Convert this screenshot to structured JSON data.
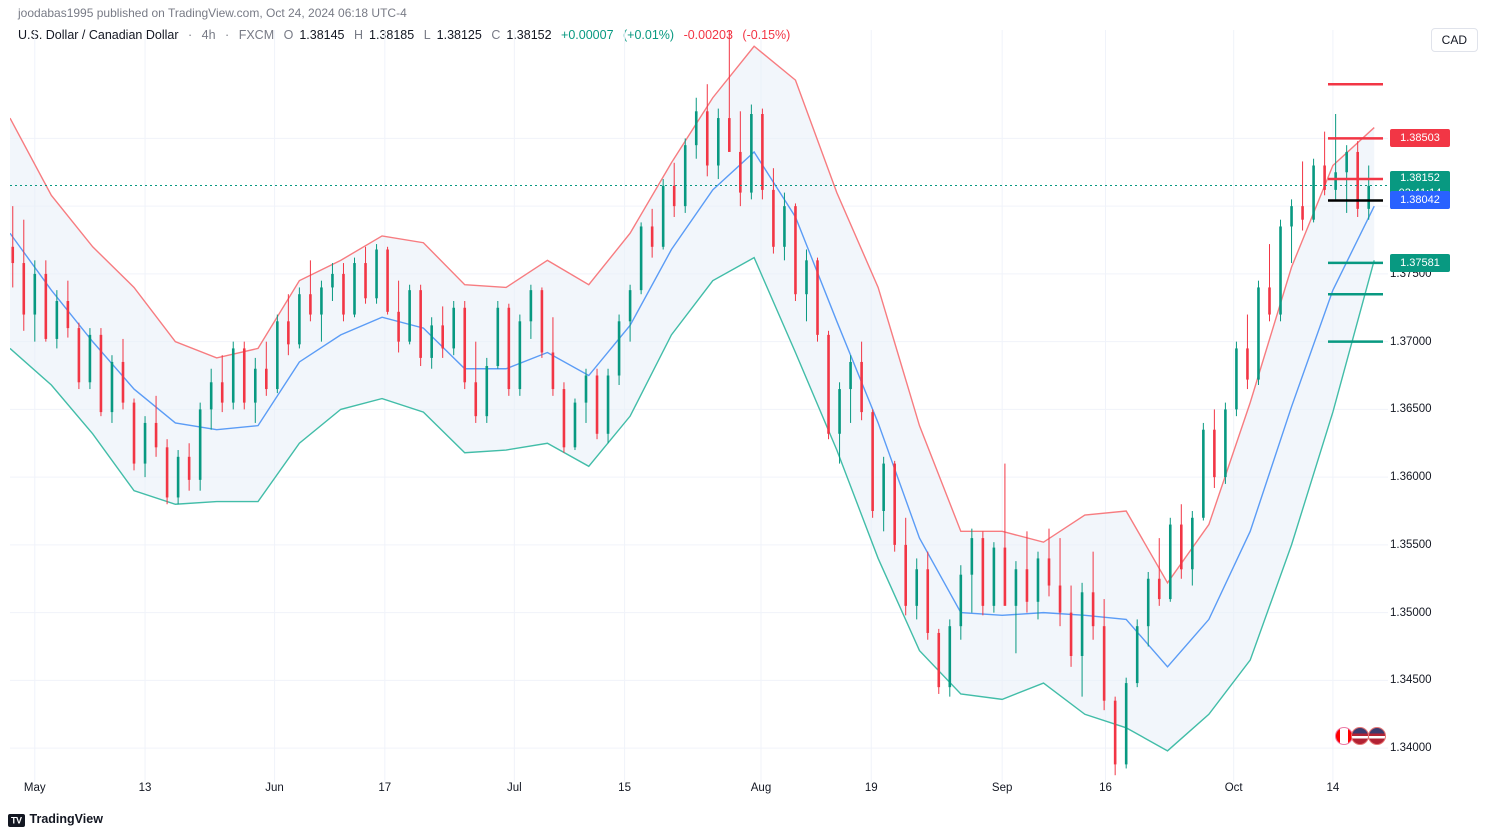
{
  "header": {
    "publisher": "joodabas1995",
    "verb": "published on",
    "site": "TradingView.com",
    "timestamp": "Oct 24, 2024 06:18 UTC-4"
  },
  "symbol": {
    "name": "U.S. Dollar / Canadian Dollar",
    "interval": "4h",
    "source": "FXCM",
    "ohlc": {
      "O": "1.38145",
      "H": "1.38185",
      "L": "1.38125",
      "C": "1.38152"
    },
    "change_abs": "+0.00007",
    "change_pct": "(+0.01%)",
    "change2_abs": "-0.00203",
    "change2_pct": "(-0.15%)"
  },
  "currency_badge": "CAD",
  "footer_brand": "TradingView",
  "axes": {
    "ymin": 1.3375,
    "ymax": 1.393,
    "yticks": [
      {
        "v": 1.385,
        "l": "1.38500"
      },
      {
        "v": 1.38,
        "l": "1.38000"
      },
      {
        "v": 1.375,
        "l": "1.37500"
      },
      {
        "v": 1.37,
        "l": "1.37000"
      },
      {
        "v": 1.365,
        "l": "1.36500"
      },
      {
        "v": 1.36,
        "l": "1.36000"
      },
      {
        "v": 1.355,
        "l": "1.35500"
      },
      {
        "v": 1.35,
        "l": "1.35000"
      },
      {
        "v": 1.345,
        "l": "1.34500"
      },
      {
        "v": 1.34,
        "l": "1.34000"
      }
    ],
    "xticks": [
      {
        "t": 0.018,
        "l": "May"
      },
      {
        "t": 0.098,
        "l": "13"
      },
      {
        "t": 0.192,
        "l": "Jun"
      },
      {
        "t": 0.272,
        "l": "17"
      },
      {
        "t": 0.366,
        "l": "Jul"
      },
      {
        "t": 0.446,
        "l": "15"
      },
      {
        "t": 0.545,
        "l": "Aug"
      },
      {
        "t": 0.625,
        "l": "19"
      },
      {
        "t": 0.72,
        "l": "Sep"
      },
      {
        "t": 0.795,
        "l": "16"
      },
      {
        "t": 0.888,
        "l": "Oct"
      },
      {
        "t": 0.96,
        "l": "14"
      }
    ]
  },
  "price_labels": [
    {
      "v": 1.38503,
      "text": "1.38503",
      "bg": "#f23645"
    },
    {
      "v": 1.38152,
      "text": "1.38152",
      "text2": "02:41:14",
      "bg": "#089981"
    },
    {
      "v": 1.38042,
      "text": "1.38042",
      "bg": "#2962ff"
    },
    {
      "v": 1.37581,
      "text": "1.37581",
      "bg": "#089981"
    }
  ],
  "current_price_line": {
    "v": 1.38152,
    "color": "#089981",
    "dash": "2,3"
  },
  "markers": {
    "red_short": [
      {
        "v": 1.389
      },
      {
        "v": 1.385
      },
      {
        "v": 1.382
      }
    ],
    "black_short": [
      {
        "v": 1.38042
      }
    ],
    "green_short": [
      {
        "v": 1.37581
      },
      {
        "v": 1.3735
      },
      {
        "v": 1.37
      }
    ]
  },
  "style": {
    "upper_band_color": "#f77c80",
    "lower_band_color": "#42bda8",
    "mid_band_color": "#5b9cf6",
    "band_fill": "#e8eef8",
    "band_fill_opacity": 0.55,
    "candle_up": "#089981",
    "candle_down": "#f23645",
    "grid_color": "#f0f3fa",
    "wick_width": 1,
    "body_width": 2.6
  },
  "series_comment": "t = 0..1 across x; values are price",
  "upper_band": [
    [
      0.0,
      1.3865
    ],
    [
      0.03,
      1.3808
    ],
    [
      0.06,
      1.377
    ],
    [
      0.09,
      1.374
    ],
    [
      0.12,
      1.37
    ],
    [
      0.15,
      1.3688
    ],
    [
      0.18,
      1.3695
    ],
    [
      0.21,
      1.3745
    ],
    [
      0.24,
      1.376
    ],
    [
      0.27,
      1.3778
    ],
    [
      0.3,
      1.3773
    ],
    [
      0.33,
      1.3742
    ],
    [
      0.36,
      1.374
    ],
    [
      0.39,
      1.376
    ],
    [
      0.42,
      1.3742
    ],
    [
      0.45,
      1.378
    ],
    [
      0.48,
      1.3832
    ],
    [
      0.51,
      1.388
    ],
    [
      0.54,
      1.3918
    ],
    [
      0.57,
      1.3893
    ],
    [
      0.6,
      1.381
    ],
    [
      0.63,
      1.374
    ],
    [
      0.66,
      1.3638
    ],
    [
      0.69,
      1.356
    ],
    [
      0.72,
      1.356
    ],
    [
      0.75,
      1.3552
    ],
    [
      0.78,
      1.3572
    ],
    [
      0.81,
      1.3575
    ],
    [
      0.84,
      1.3522
    ],
    [
      0.87,
      1.3565
    ],
    [
      0.9,
      1.3655
    ],
    [
      0.93,
      1.3755
    ],
    [
      0.96,
      1.383
    ],
    [
      0.99,
      1.3858
    ]
  ],
  "mid_band": [
    [
      0.0,
      1.378
    ],
    [
      0.03,
      1.3738
    ],
    [
      0.06,
      1.37
    ],
    [
      0.09,
      1.3665
    ],
    [
      0.12,
      1.364
    ],
    [
      0.15,
      1.3635
    ],
    [
      0.18,
      1.3638
    ],
    [
      0.21,
      1.3685
    ],
    [
      0.24,
      1.3705
    ],
    [
      0.27,
      1.3718
    ],
    [
      0.3,
      1.371
    ],
    [
      0.33,
      1.368
    ],
    [
      0.36,
      1.368
    ],
    [
      0.39,
      1.3692
    ],
    [
      0.42,
      1.3675
    ],
    [
      0.45,
      1.3712
    ],
    [
      0.48,
      1.3768
    ],
    [
      0.51,
      1.3812
    ],
    [
      0.54,
      1.384
    ],
    [
      0.57,
      1.3792
    ],
    [
      0.6,
      1.3715
    ],
    [
      0.63,
      1.364
    ],
    [
      0.66,
      1.3555
    ],
    [
      0.69,
      1.35
    ],
    [
      0.72,
      1.3498
    ],
    [
      0.75,
      1.35
    ],
    [
      0.78,
      1.3498
    ],
    [
      0.81,
      1.3495
    ],
    [
      0.84,
      1.346
    ],
    [
      0.87,
      1.3495
    ],
    [
      0.9,
      1.356
    ],
    [
      0.93,
      1.3652
    ],
    [
      0.96,
      1.3738
    ],
    [
      0.99,
      1.38
    ]
  ],
  "lower_band": [
    [
      0.0,
      1.3695
    ],
    [
      0.03,
      1.3668
    ],
    [
      0.06,
      1.3632
    ],
    [
      0.09,
      1.359
    ],
    [
      0.12,
      1.358
    ],
    [
      0.15,
      1.3582
    ],
    [
      0.18,
      1.3582
    ],
    [
      0.21,
      1.3625
    ],
    [
      0.24,
      1.365
    ],
    [
      0.27,
      1.3658
    ],
    [
      0.3,
      1.3648
    ],
    [
      0.33,
      1.3618
    ],
    [
      0.36,
      1.362
    ],
    [
      0.39,
      1.3625
    ],
    [
      0.42,
      1.3608
    ],
    [
      0.45,
      1.3645
    ],
    [
      0.48,
      1.3705
    ],
    [
      0.51,
      1.3745
    ],
    [
      0.54,
      1.3762
    ],
    [
      0.57,
      1.3692
    ],
    [
      0.6,
      1.362
    ],
    [
      0.63,
      1.354
    ],
    [
      0.66,
      1.3472
    ],
    [
      0.69,
      1.344
    ],
    [
      0.72,
      1.3436
    ],
    [
      0.75,
      1.3448
    ],
    [
      0.78,
      1.3425
    ],
    [
      0.81,
      1.3415
    ],
    [
      0.84,
      1.3398
    ],
    [
      0.87,
      1.3425
    ],
    [
      0.9,
      1.3465
    ],
    [
      0.93,
      1.355
    ],
    [
      0.96,
      1.3648
    ],
    [
      0.99,
      1.376
    ]
  ],
  "candles": [
    [
      0.002,
      1.377,
      1.38,
      1.374,
      1.3758
    ],
    [
      0.01,
      1.3758,
      1.379,
      1.3708,
      1.372
    ],
    [
      0.018,
      1.372,
      1.376,
      1.37,
      1.375
    ],
    [
      0.026,
      1.375,
      1.376,
      1.37,
      1.3702
    ],
    [
      0.034,
      1.3702,
      1.3738,
      1.3695,
      1.373
    ],
    [
      0.042,
      1.373,
      1.3745,
      1.3703,
      1.371
    ],
    [
      0.05,
      1.371,
      1.3714,
      1.3665,
      1.367
    ],
    [
      0.058,
      1.367,
      1.371,
      1.3665,
      1.3705
    ],
    [
      0.066,
      1.3705,
      1.371,
      1.3645,
      1.3648
    ],
    [
      0.074,
      1.3648,
      1.369,
      1.364,
      1.3685
    ],
    [
      0.082,
      1.3685,
      1.3702,
      1.365,
      1.3655
    ],
    [
      0.09,
      1.3655,
      1.3658,
      1.3605,
      1.361
    ],
    [
      0.098,
      1.361,
      1.3645,
      1.36,
      1.364
    ],
    [
      0.106,
      1.364,
      1.366,
      1.3615,
      1.3622
    ],
    [
      0.114,
      1.3622,
      1.3628,
      1.358,
      1.3585
    ],
    [
      0.122,
      1.3585,
      1.362,
      1.358,
      1.3615
    ],
    [
      0.13,
      1.3615,
      1.3625,
      1.359,
      1.3598
    ],
    [
      0.138,
      1.3598,
      1.3655,
      1.359,
      1.365
    ],
    [
      0.146,
      1.365,
      1.368,
      1.3635,
      1.367
    ],
    [
      0.154,
      1.367,
      1.369,
      1.3648,
      1.3655
    ],
    [
      0.162,
      1.3655,
      1.37,
      1.365,
      1.3695
    ],
    [
      0.17,
      1.3695,
      1.37,
      1.365,
      1.3655
    ],
    [
      0.178,
      1.3655,
      1.3688,
      1.364,
      1.368
    ],
    [
      0.186,
      1.368,
      1.37,
      1.366,
      1.3665
    ],
    [
      0.194,
      1.3665,
      1.372,
      1.3662,
      1.3715
    ],
    [
      0.202,
      1.3715,
      1.3735,
      1.369,
      1.3698
    ],
    [
      0.21,
      1.3698,
      1.374,
      1.3695,
      1.3735
    ],
    [
      0.218,
      1.3735,
      1.376,
      1.3715,
      1.372
    ],
    [
      0.226,
      1.372,
      1.3745,
      1.37,
      1.374
    ],
    [
      0.234,
      1.374,
      1.3758,
      1.373,
      1.375
    ],
    [
      0.242,
      1.375,
      1.3758,
      1.3715,
      1.372
    ],
    [
      0.25,
      1.372,
      1.3762,
      1.3718,
      1.3758
    ],
    [
      0.258,
      1.3758,
      1.377,
      1.3728,
      1.3732
    ],
    [
      0.266,
      1.3732,
      1.3772,
      1.3728,
      1.3768
    ],
    [
      0.274,
      1.3768,
      1.377,
      1.372,
      1.3722
    ],
    [
      0.282,
      1.3722,
      1.3745,
      1.3692,
      1.37
    ],
    [
      0.29,
      1.37,
      1.3742,
      1.3698,
      1.3738
    ],
    [
      0.298,
      1.3738,
      1.3742,
      1.3682,
      1.3688
    ],
    [
      0.306,
      1.3688,
      1.3718,
      1.368,
      1.3712
    ],
    [
      0.314,
      1.3712,
      1.3726,
      1.3688,
      1.3695
    ],
    [
      0.322,
      1.3695,
      1.373,
      1.369,
      1.3725
    ],
    [
      0.33,
      1.3725,
      1.373,
      1.3665,
      1.367
    ],
    [
      0.338,
      1.367,
      1.37,
      1.364,
      1.3645
    ],
    [
      0.346,
      1.3645,
      1.3688,
      1.364,
      1.3682
    ],
    [
      0.354,
      1.3682,
      1.373,
      1.368,
      1.3725
    ],
    [
      0.362,
      1.3725,
      1.3728,
      1.366,
      1.3665
    ],
    [
      0.37,
      1.3665,
      1.372,
      1.366,
      1.3715
    ],
    [
      0.378,
      1.3715,
      1.3742,
      1.3702,
      1.3738
    ],
    [
      0.386,
      1.3738,
      1.374,
      1.3688,
      1.3692
    ],
    [
      0.394,
      1.3692,
      1.3718,
      1.366,
      1.3665
    ],
    [
      0.402,
      1.3665,
      1.367,
      1.3618,
      1.3622
    ],
    [
      0.41,
      1.3622,
      1.3658,
      1.362,
      1.3655
    ],
    [
      0.418,
      1.3655,
      1.368,
      1.364,
      1.3675
    ],
    [
      0.426,
      1.3675,
      1.368,
      1.3628,
      1.3632
    ],
    [
      0.434,
      1.3632,
      1.368,
      1.3625,
      1.3675
    ],
    [
      0.442,
      1.3675,
      1.372,
      1.3668,
      1.3715
    ],
    [
      0.45,
      1.3715,
      1.3742,
      1.37,
      1.3738
    ],
    [
      0.458,
      1.3738,
      1.3788,
      1.3735,
      1.3785
    ],
    [
      0.466,
      1.3785,
      1.3798,
      1.3762,
      1.377
    ],
    [
      0.474,
      1.377,
      1.382,
      1.3768,
      1.3815
    ],
    [
      0.482,
      1.3815,
      1.3832,
      1.3792,
      1.38
    ],
    [
      0.49,
      1.38,
      1.385,
      1.3795,
      1.3845
    ],
    [
      0.498,
      1.3845,
      1.388,
      1.3835,
      1.387
    ],
    [
      0.506,
      1.387,
      1.389,
      1.3822,
      1.383
    ],
    [
      0.514,
      1.383,
      1.3872,
      1.382,
      1.3865
    ],
    [
      0.522,
      1.3865,
      1.393,
      1.3858,
      1.384
    ],
    [
      0.53,
      1.384,
      1.387,
      1.38,
      1.381
    ],
    [
      0.538,
      1.381,
      1.3875,
      1.3805,
      1.3868
    ],
    [
      0.546,
      1.3868,
      1.3872,
      1.3805,
      1.3812
    ],
    [
      0.554,
      1.3812,
      1.3828,
      1.3765,
      1.377
    ],
    [
      0.562,
      1.377,
      1.381,
      1.376,
      1.38
    ],
    [
      0.57,
      1.38,
      1.3802,
      1.373,
      1.3735
    ],
    [
      0.578,
      1.3735,
      1.3768,
      1.3715,
      1.376
    ],
    [
      0.586,
      1.376,
      1.3762,
      1.37,
      1.3705
    ],
    [
      0.594,
      1.3705,
      1.3708,
      1.3628,
      1.3632
    ],
    [
      0.602,
      1.3632,
      1.367,
      1.361,
      1.3665
    ],
    [
      0.61,
      1.3665,
      1.369,
      1.364,
      1.3685
    ],
    [
      0.618,
      1.3685,
      1.37,
      1.3642,
      1.3648
    ],
    [
      0.626,
      1.3648,
      1.365,
      1.357,
      1.3575
    ],
    [
      0.634,
      1.3575,
      1.3615,
      1.356,
      1.361
    ],
    [
      0.642,
      1.361,
      1.3612,
      1.3545,
      1.355
    ],
    [
      0.65,
      1.355,
      1.357,
      1.3498,
      1.3505
    ],
    [
      0.658,
      1.3505,
      1.354,
      1.3495,
      1.3532
    ],
    [
      0.666,
      1.3532,
      1.3545,
      1.348,
      1.3485
    ],
    [
      0.674,
      1.3485,
      1.3488,
      1.344,
      1.3445
    ],
    [
      0.682,
      1.3445,
      1.3495,
      1.3438,
      1.349
    ],
    [
      0.69,
      1.349,
      1.3535,
      1.348,
      1.3528
    ],
    [
      0.698,
      1.3528,
      1.3562,
      1.35,
      1.3555
    ],
    [
      0.706,
      1.3555,
      1.356,
      1.3498,
      1.3505
    ],
    [
      0.714,
      1.3505,
      1.3552,
      1.35,
      1.3548
    ],
    [
      0.722,
      1.3548,
      1.361,
      1.3545,
      1.3505
    ],
    [
      0.73,
      1.3505,
      1.3538,
      1.347,
      1.3532
    ],
    [
      0.738,
      1.3532,
      1.356,
      1.35,
      1.3508
    ],
    [
      0.746,
      1.3508,
      1.3545,
      1.3495,
      1.354
    ],
    [
      0.754,
      1.354,
      1.3562,
      1.3512,
      1.352
    ],
    [
      0.762,
      1.352,
      1.3555,
      1.349,
      1.35
    ],
    [
      0.77,
      1.35,
      1.352,
      1.346,
      1.3468
    ],
    [
      0.778,
      1.3468,
      1.3522,
      1.3438,
      1.3515
    ],
    [
      0.786,
      1.3515,
      1.3545,
      1.348,
      1.349
    ],
    [
      0.794,
      1.349,
      1.351,
      1.3428,
      1.3435
    ],
    [
      0.802,
      1.3435,
      1.3438,
      1.338,
      1.3388
    ],
    [
      0.81,
      1.3388,
      1.3452,
      1.3385,
      1.3448
    ],
    [
      0.818,
      1.3448,
      1.3495,
      1.3445,
      1.349
    ],
    [
      0.826,
      1.349,
      1.353,
      1.3475,
      1.3525
    ],
    [
      0.834,
      1.3525,
      1.3555,
      1.3505,
      1.351
    ],
    [
      0.842,
      1.351,
      1.357,
      1.3508,
      1.3565
    ],
    [
      0.85,
      1.3565,
      1.358,
      1.3525,
      1.3532
    ],
    [
      0.858,
      1.3532,
      1.3575,
      1.352,
      1.357
    ],
    [
      0.866,
      1.357,
      1.364,
      1.3568,
      1.3635
    ],
    [
      0.874,
      1.3635,
      1.365,
      1.3592,
      1.36
    ],
    [
      0.882,
      1.36,
      1.3655,
      1.3595,
      1.365
    ],
    [
      0.89,
      1.365,
      1.37,
      1.3645,
      1.3695
    ],
    [
      0.898,
      1.3695,
      1.372,
      1.3665,
      1.3672
    ],
    [
      0.906,
      1.3672,
      1.3745,
      1.3668,
      1.374
    ],
    [
      0.914,
      1.374,
      1.3772,
      1.3715,
      1.372
    ],
    [
      0.922,
      1.372,
      1.379,
      1.3715,
      1.3785
    ],
    [
      0.93,
      1.3785,
      1.3805,
      1.3758,
      1.38
    ],
    [
      0.938,
      1.38,
      1.3833,
      1.3782,
      1.379
    ],
    [
      0.946,
      1.379,
      1.3835,
      1.3788,
      1.383
    ],
    [
      0.954,
      1.383,
      1.3855,
      1.3808,
      1.3812
    ],
    [
      0.962,
      1.3812,
      1.3868,
      1.3805,
      1.3825
    ],
    [
      0.97,
      1.3825,
      1.3845,
      1.3795,
      1.384
    ],
    [
      0.978,
      1.384,
      1.3848,
      1.3792,
      1.3798
    ],
    [
      0.986,
      1.3798,
      1.383,
      1.379,
      1.3815
    ]
  ]
}
